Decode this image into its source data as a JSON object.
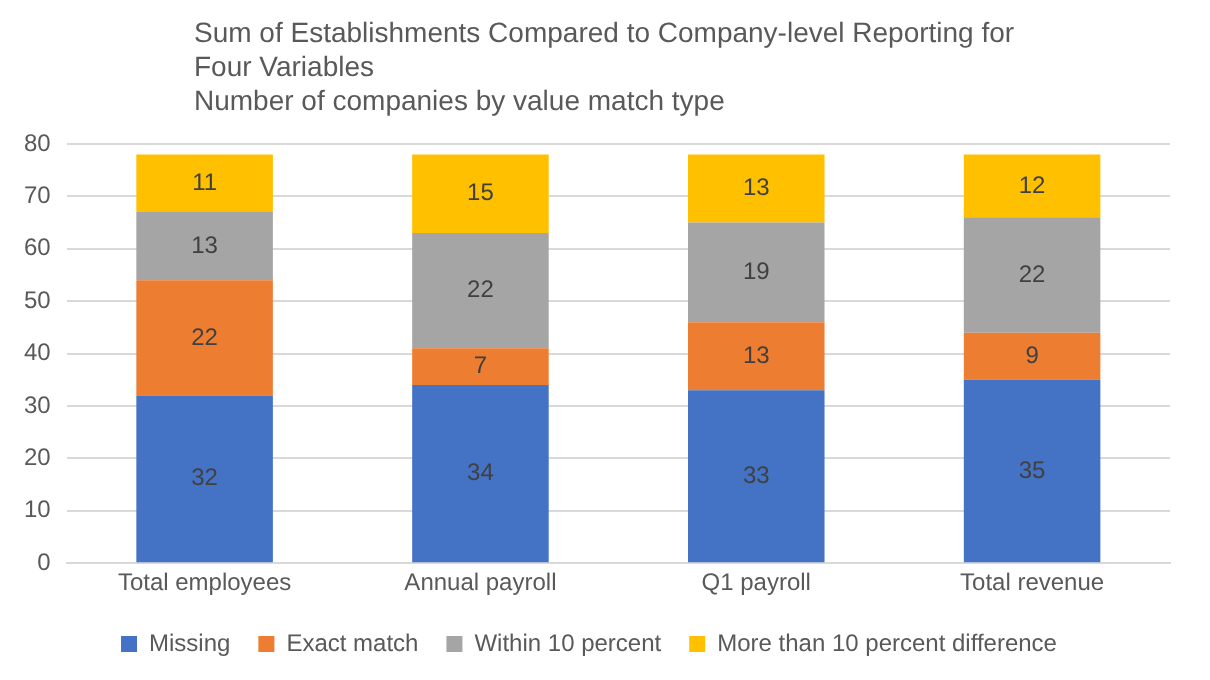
{
  "chart_data": {
    "type": "bar",
    "title": "Sum of Establishments Compared to Company-level Reporting for Four Variables",
    "subtitle": "Number of companies by value match type",
    "categories": [
      "Total employees",
      "Annual payroll",
      "Q1 payroll",
      "Total revenue"
    ],
    "stacked": true,
    "series": [
      {
        "name": "Missing",
        "color": "#4472c4",
        "values": [
          32,
          34,
          33,
          35
        ]
      },
      {
        "name": "Exact match",
        "color": "#ed7d31",
        "values": [
          22,
          7,
          13,
          9
        ]
      },
      {
        "name": "Within 10 percent",
        "color": "#a5a5a5",
        "values": [
          13,
          22,
          19,
          22
        ]
      },
      {
        "name": "More than 10 percent difference",
        "color": "#ffc000",
        "values": [
          11,
          15,
          13,
          12
        ]
      }
    ],
    "ylim": [
      0,
      80
    ],
    "yticks": [
      0,
      10,
      20,
      30,
      40,
      50,
      60,
      70,
      80
    ],
    "grid": "y",
    "legend": "bottom",
    "data_labels": true
  }
}
